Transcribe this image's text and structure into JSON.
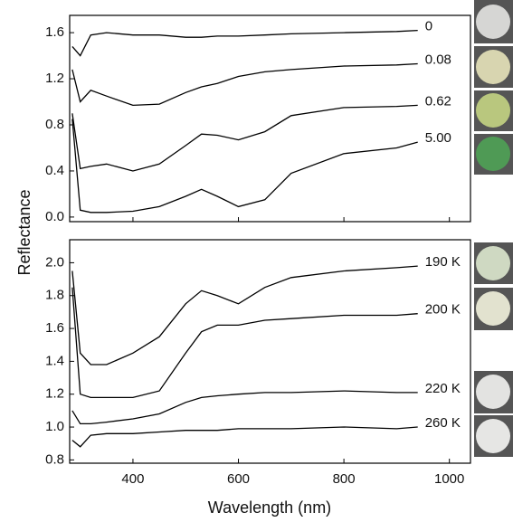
{
  "chart_data": [
    {
      "type": "line",
      "ylabel": "Reflectance",
      "x": [
        285,
        300,
        320,
        350,
        400,
        450,
        500,
        530,
        560,
        600,
        650,
        700,
        800,
        900,
        940
      ],
      "xlim": [
        280,
        1040
      ],
      "xticks": [
        400,
        600,
        800,
        1000
      ],
      "xtick_labels": false,
      "ylim": [
        -0.04,
        1.75
      ],
      "yticks": [
        {
          "value": 0,
          "label": "0.0"
        },
        0.4,
        0.8,
        1.2,
        1.6
      ],
      "series": [
        {
          "name": "0",
          "color": "#000000",
          "values": [
            1.48,
            1.4,
            1.58,
            1.6,
            1.58,
            1.58,
            1.56,
            1.56,
            1.57,
            1.57,
            1.58,
            1.59,
            1.6,
            1.61,
            1.62
          ]
        },
        {
          "name": "0.08",
          "color": "#000000",
          "values": [
            1.28,
            1.0,
            1.1,
            1.05,
            0.97,
            0.98,
            1.08,
            1.13,
            1.16,
            1.22,
            1.26,
            1.28,
            1.31,
            1.32,
            1.33
          ]
        },
        {
          "name": "0.62",
          "color": "#000000",
          "values": [
            0.9,
            0.42,
            0.44,
            0.46,
            0.4,
            0.46,
            0.62,
            0.72,
            0.71,
            0.67,
            0.74,
            0.88,
            0.95,
            0.96,
            0.97
          ]
        },
        {
          "name": "5.00",
          "color": "#000000",
          "values": [
            0.85,
            0.06,
            0.04,
            0.04,
            0.05,
            0.09,
            0.18,
            0.24,
            0.18,
            0.09,
            0.15,
            0.38,
            0.55,
            0.6,
            0.65
          ]
        }
      ]
    },
    {
      "type": "line",
      "xlabel": "Wavelength (nm)",
      "x": [
        285,
        300,
        320,
        350,
        400,
        450,
        500,
        530,
        560,
        600,
        650,
        700,
        800,
        900,
        940
      ],
      "xlim": [
        280,
        1040
      ],
      "xticks": [
        400,
        600,
        800,
        1000
      ],
      "xtick_labels": true,
      "ylim": [
        0.78,
        2.14
      ],
      "yticks": [
        0.8,
        {
          "value": 1,
          "label": "1.0"
        },
        1.2,
        1.4,
        1.6,
        1.8,
        {
          "value": 2,
          "label": "2.0"
        }
      ],
      "series": [
        {
          "name": "190 K",
          "color": "#000000",
          "values": [
            1.95,
            1.45,
            1.38,
            1.38,
            1.45,
            1.55,
            1.75,
            1.83,
            1.8,
            1.75,
            1.85,
            1.91,
            1.95,
            1.97,
            1.98
          ]
        },
        {
          "name": "200 K",
          "color": "#000000",
          "values": [
            1.85,
            1.2,
            1.18,
            1.18,
            1.18,
            1.22,
            1.45,
            1.58,
            1.62,
            1.62,
            1.65,
            1.66,
            1.68,
            1.68,
            1.69
          ]
        },
        {
          "name": "220 K",
          "color": "#000000",
          "values": [
            1.1,
            1.02,
            1.02,
            1.03,
            1.05,
            1.08,
            1.15,
            1.18,
            1.19,
            1.2,
            1.21,
            1.21,
            1.22,
            1.21,
            1.21
          ]
        },
        {
          "name": "260 K",
          "color": "#000000",
          "values": [
            0.92,
            0.88,
            0.95,
            0.96,
            0.96,
            0.97,
            0.98,
            0.98,
            0.98,
            0.99,
            0.99,
            0.99,
            1.0,
            0.99,
            1.0
          ]
        }
      ]
    }
  ]
}
